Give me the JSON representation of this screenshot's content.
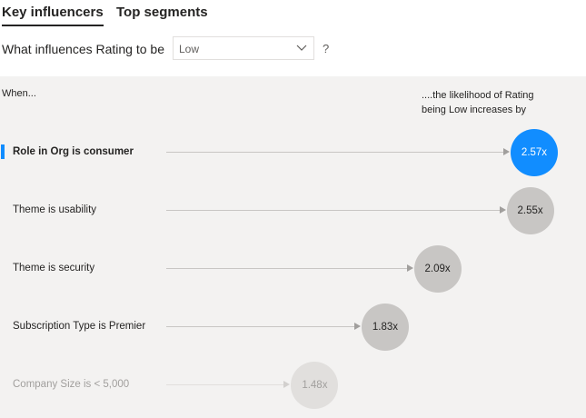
{
  "tabs": [
    {
      "label": "Key influencers",
      "active": true
    },
    {
      "label": "Top segments",
      "active": false
    }
  ],
  "question": {
    "prefix": "What influences Rating to be",
    "selected_value": "Low",
    "suffix": "?"
  },
  "panel": {
    "left_header": "When...",
    "right_header_line1": "....the likelihood of Rating",
    "right_header_line2": "being Low increases by"
  },
  "influencers": [
    {
      "label": "Role in Org is consumer",
      "value": "2.57x",
      "multiplier": 2.57,
      "state": "selected"
    },
    {
      "label": "Theme is usability",
      "value": "2.55x",
      "multiplier": 2.55,
      "state": "normal"
    },
    {
      "label": "Theme is security",
      "value": "2.09x",
      "multiplier": 2.09,
      "state": "normal"
    },
    {
      "label": "Subscription Type is Premier",
      "value": "1.83x",
      "multiplier": 1.83,
      "state": "normal"
    },
    {
      "label": "Company Size is < 5,000",
      "value": "1.48x",
      "multiplier": 1.48,
      "state": "faded"
    }
  ],
  "colors": {
    "selected": "#118dff",
    "bubble": "#c8c6c4",
    "panel_background": "#f3f2f1"
  }
}
